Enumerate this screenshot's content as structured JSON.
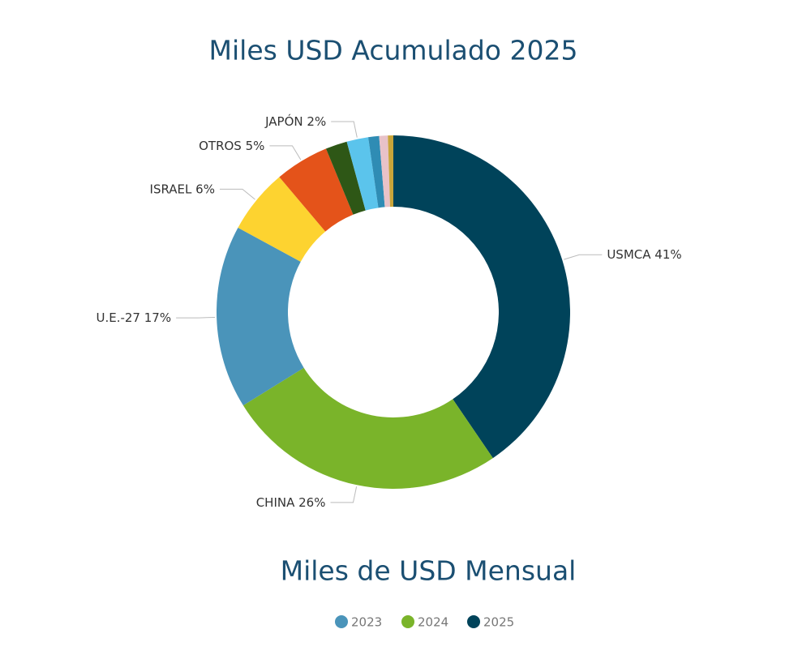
{
  "chart_data": [
    {
      "type": "donut",
      "title": "Miles USD Acumulado 2025",
      "categories": [
        "USMCA",
        "CHINA",
        "U.E.-27",
        "ISRAEL",
        "OTROS",
        null,
        "JAPÓN",
        null,
        null,
        null
      ],
      "values": [
        41,
        26,
        17,
        6,
        5,
        2,
        2,
        1,
        0.8,
        0.5
      ],
      "value_labels": [
        "41%",
        "26%",
        "17%",
        "6%",
        "5%",
        null,
        "2%",
        null,
        null,
        null
      ],
      "colors": [
        "#00435a",
        "#7ab42a",
        "#4a94ba",
        "#fdd330",
        "#e4531a",
        "#2e5716",
        "#5bc4ec",
        "#2f8cb4",
        "#e8c2c8",
        "#c9a53a"
      ]
    },
    {
      "type": "line",
      "title": "Miles de USD Mensual",
      "series": [
        {
          "name": "2023",
          "color": "#4a94ba"
        },
        {
          "name": "2024",
          "color": "#7ab42a"
        },
        {
          "name": "2025",
          "color": "#00435a"
        }
      ]
    }
  ]
}
